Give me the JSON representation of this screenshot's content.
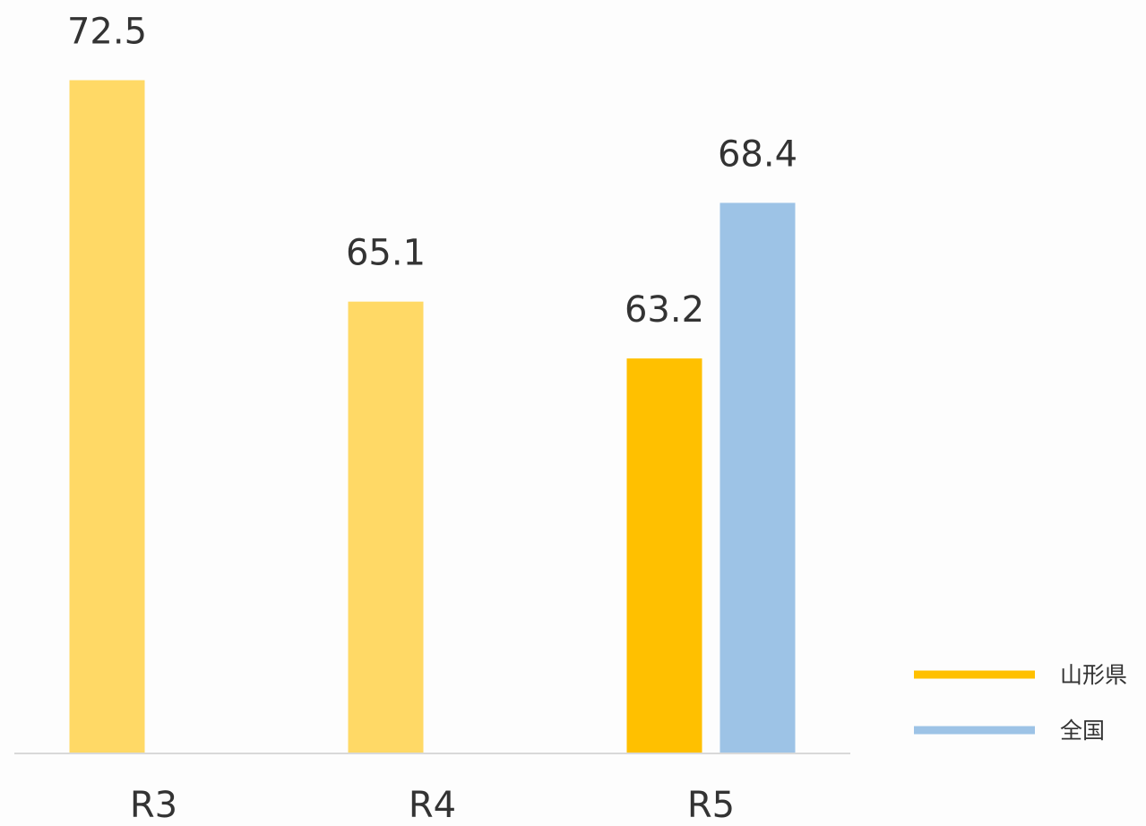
{
  "chart_data": {
    "type": "bar",
    "categories": [
      "R3",
      "R4",
      "R5"
    ],
    "series": [
      {
        "name": "山形県",
        "color": "#ffc000",
        "colors": [
          "#ffd966",
          "#ffd966",
          "#ffc000"
        ],
        "values": [
          72.5,
          65.1,
          63.2
        ]
      },
      {
        "name": "全国",
        "color": "#9dc3e6",
        "values": [
          null,
          null,
          68.4
        ]
      }
    ],
    "ylim": [
      50,
      75
    ],
    "legend": "right"
  }
}
